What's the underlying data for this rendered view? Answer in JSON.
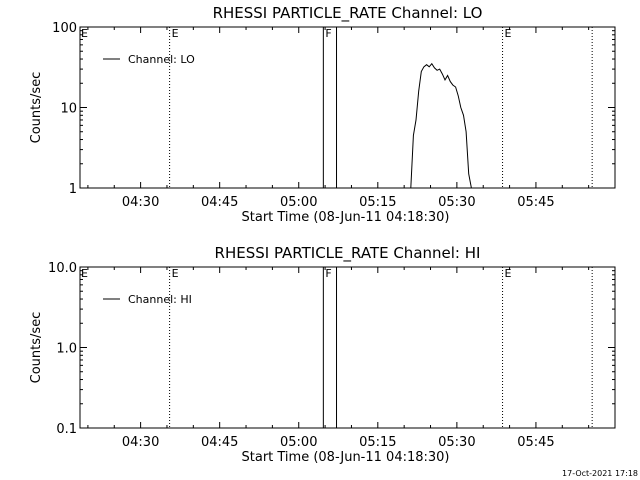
{
  "chart_data": [
    {
      "type": "line",
      "title": "RHESSI PARTICLE_RATE Channel: LO",
      "xlabel": "Start Time (08-Jun-11 04:18:30)",
      "ylabel": "Counts/sec",
      "yscale": "log",
      "ylim": [
        1,
        100
      ],
      "xlim": [
        "04:18:30",
        "06:00:00"
      ],
      "xticks": [
        "04:30",
        "04:45",
        "05:00",
        "05:15",
        "05:30",
        "05:45"
      ],
      "yticks": [
        {
          "value": 1,
          "label": "1"
        },
        {
          "value": 10,
          "label": "10"
        },
        {
          "value": 100,
          "label": "100"
        }
      ],
      "legend": {
        "entry": "Channel: LO",
        "placement": "top-left"
      },
      "series": [
        {
          "name": "Channel: LO",
          "x": [
            "05:21:15",
            "05:21:45",
            "05:22:15",
            "05:22:45",
            "05:23:15",
            "05:23:45",
            "05:24:15",
            "05:24:45",
            "05:25:15",
            "05:25:45",
            "05:26:15",
            "05:26:45",
            "05:27:15",
            "05:27:45",
            "05:28:15",
            "05:28:45",
            "05:29:15",
            "05:29:45",
            "05:30:15",
            "05:30:45",
            "05:31:15",
            "05:31:45",
            "05:32:15",
            "05:32:45"
          ],
          "y": [
            1.0,
            4.5,
            7.0,
            16.0,
            28.0,
            32.0,
            34.0,
            32.0,
            35.0,
            31.0,
            29.0,
            30.0,
            26.0,
            22.0,
            25.0,
            21.0,
            19.0,
            18.0,
            14.0,
            10.0,
            8.0,
            5.0,
            1.5,
            1.0
          ]
        }
      ],
      "markers": [
        {
          "time": "04:35:30",
          "label": "E",
          "style": "dotted"
        },
        {
          "time": "05:04:40",
          "label": "F",
          "style": "solid"
        },
        {
          "time": "05:07:10",
          "label": "",
          "style": "solid"
        },
        {
          "time": "05:38:40",
          "label": "E",
          "style": "dotted"
        },
        {
          "time": "05:55:40",
          "label": "",
          "style": "dotted"
        }
      ],
      "corner_label": "E"
    },
    {
      "type": "line",
      "title": "RHESSI PARTICLE_RATE Channel: HI",
      "xlabel": "Start Time (08-Jun-11 04:18:30)",
      "ylabel": "Counts/sec",
      "yscale": "log",
      "ylim": [
        0.1,
        10
      ],
      "xlim": [
        "04:18:30",
        "06:00:00"
      ],
      "xticks": [
        "04:30",
        "04:45",
        "05:00",
        "05:15",
        "05:30",
        "05:45"
      ],
      "yticks": [
        {
          "value": 0.1,
          "label": "0.1"
        },
        {
          "value": 1,
          "label": "1.0"
        },
        {
          "value": 10,
          "label": "10.0"
        }
      ],
      "legend": {
        "entry": "Channel: HI",
        "placement": "top-left"
      },
      "series": [
        {
          "name": "Channel: HI",
          "x": [],
          "y": []
        }
      ],
      "markers": [
        {
          "time": "04:35:30",
          "label": "E",
          "style": "dotted"
        },
        {
          "time": "05:04:40",
          "label": "F",
          "style": "solid"
        },
        {
          "time": "05:07:10",
          "label": "",
          "style": "solid"
        },
        {
          "time": "05:38:40",
          "label": "E",
          "style": "dotted"
        },
        {
          "time": "05:55:40",
          "label": "",
          "style": "dotted"
        }
      ],
      "corner_label": "E"
    }
  ],
  "footer": {
    "timestamp": "17-Oct-2021 17:18"
  }
}
